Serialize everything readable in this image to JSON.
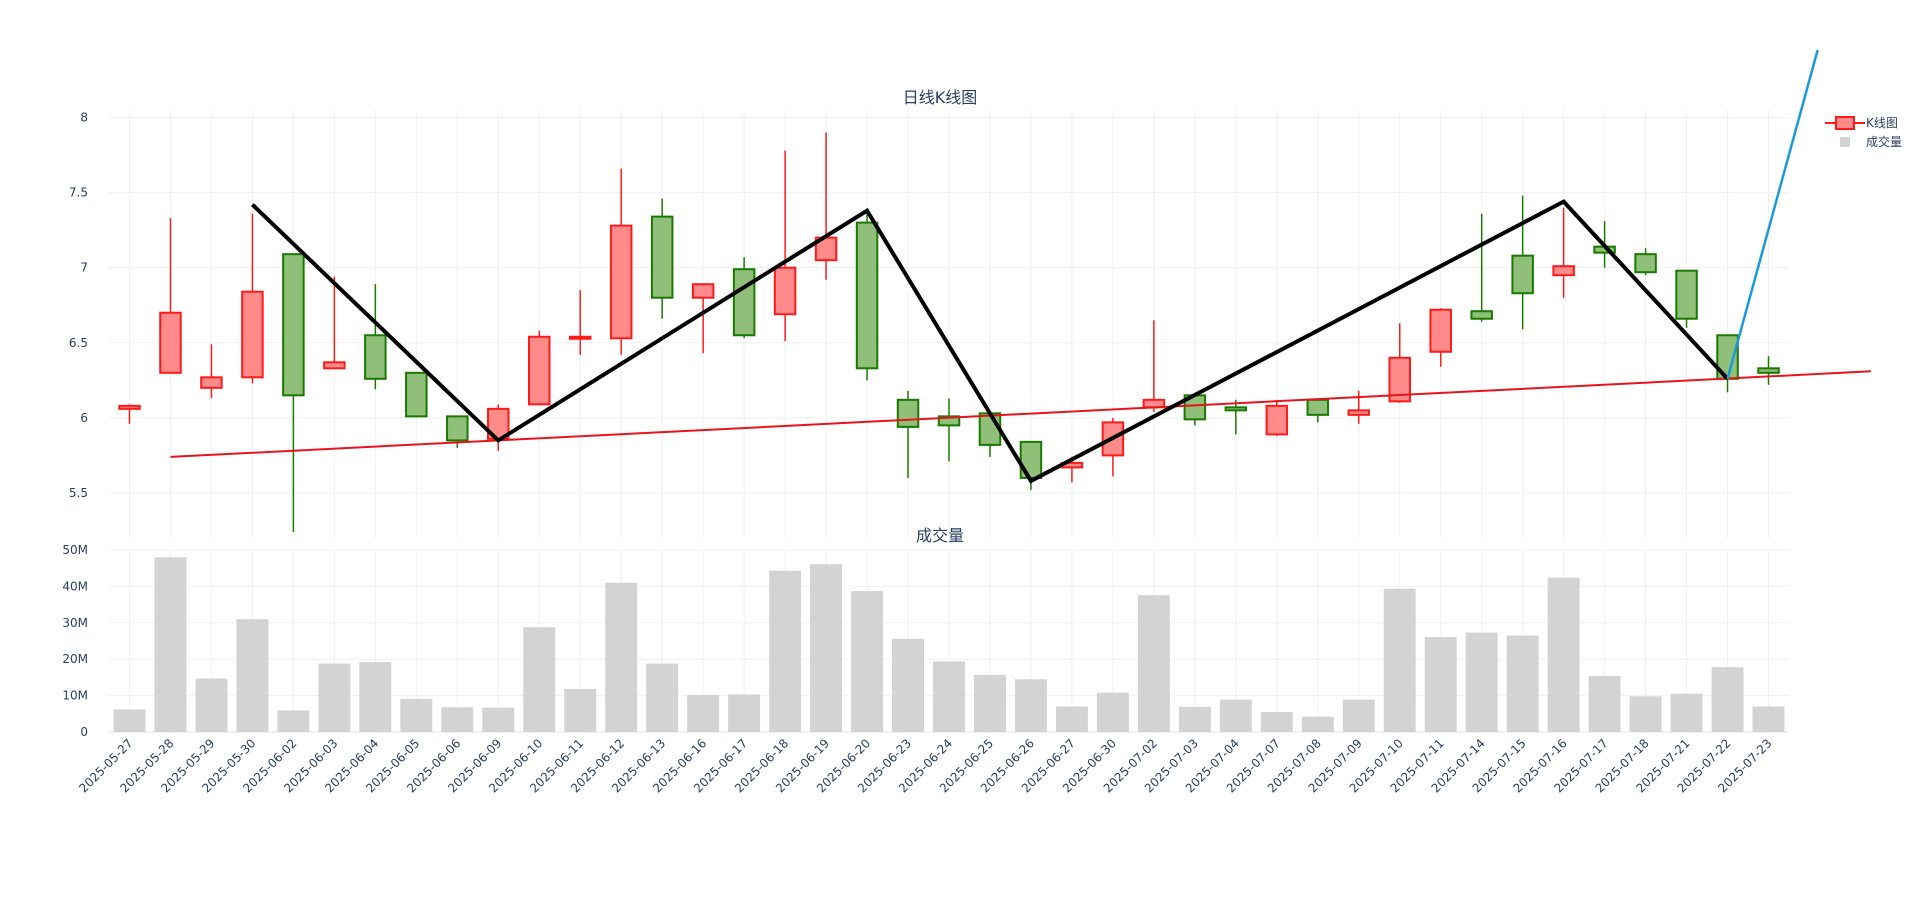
{
  "chart_data": [
    {
      "type": "candlestick",
      "title": "日线K线图",
      "yticks": [
        "5.5",
        "6",
        "6.5",
        "7",
        "7.5",
        "8"
      ],
      "ylim": [
        5.2,
        8.05
      ],
      "grid": true,
      "legend_position": "top-right",
      "colors": {
        "up": "#ff1a1a",
        "up_fill": "#ff8a8a",
        "down": "#1a7a00",
        "down_fill": "#8fbf78",
        "zigzag": "#000000",
        "trend": "#e8141c",
        "projection": "#1a9ad6"
      },
      "categories": [
        "2025-05-27",
        "2025-05-28",
        "2025-05-29",
        "2025-05-30",
        "2025-06-02",
        "2025-06-03",
        "2025-06-04",
        "2025-06-05",
        "2025-06-06",
        "2025-06-09",
        "2025-06-10",
        "2025-06-11",
        "2025-06-12",
        "2025-06-13",
        "2025-06-16",
        "2025-06-17",
        "2025-06-18",
        "2025-06-19",
        "2025-06-20",
        "2025-06-23",
        "2025-06-24",
        "2025-06-25",
        "2025-06-26",
        "2025-06-27",
        "2025-06-30",
        "2025-07-02",
        "2025-07-03",
        "2025-07-04",
        "2025-07-07",
        "2025-07-08",
        "2025-07-09",
        "2025-07-10",
        "2025-07-11",
        "2025-07-14",
        "2025-07-15",
        "2025-07-16",
        "2025-07-17",
        "2025-07-18",
        "2025-07-21",
        "2025-07-22",
        "2025-07-23"
      ],
      "ohlc": [
        [
          6.06,
          6.09,
          5.96,
          6.08
        ],
        [
          6.3,
          7.33,
          6.3,
          6.7
        ],
        [
          6.2,
          6.49,
          6.13,
          6.27
        ],
        [
          6.27,
          7.36,
          6.23,
          6.84
        ],
        [
          7.09,
          7.09,
          5.24,
          6.15
        ],
        [
          6.33,
          6.94,
          6.33,
          6.37
        ],
        [
          6.55,
          6.89,
          6.19,
          6.26
        ],
        [
          6.3,
          6.3,
          6.01,
          6.01
        ],
        [
          6.01,
          6.01,
          5.8,
          5.85
        ],
        [
          5.86,
          6.09,
          5.78,
          6.06
        ],
        [
          6.09,
          6.58,
          6.09,
          6.54
        ],
        [
          6.54,
          6.85,
          6.42,
          6.54
        ],
        [
          6.53,
          7.66,
          6.42,
          7.28
        ],
        [
          7.34,
          7.46,
          6.66,
          6.8
        ],
        [
          6.8,
          6.89,
          6.43,
          6.89
        ],
        [
          6.99,
          7.07,
          6.53,
          6.55
        ],
        [
          6.69,
          7.78,
          6.51,
          7.0
        ],
        [
          7.05,
          7.9,
          6.92,
          7.2
        ],
        [
          7.3,
          7.36,
          6.25,
          6.33
        ],
        [
          6.12,
          6.18,
          5.6,
          5.94
        ],
        [
          6.01,
          6.13,
          5.71,
          5.95
        ],
        [
          6.03,
          6.03,
          5.74,
          5.82
        ],
        [
          5.84,
          5.84,
          5.52,
          5.6
        ],
        [
          5.67,
          5.74,
          5.57,
          5.7
        ],
        [
          5.75,
          6.0,
          5.61,
          5.97
        ],
        [
          6.07,
          6.65,
          6.04,
          6.12
        ],
        [
          6.15,
          6.15,
          5.95,
          5.99
        ],
        [
          6.07,
          6.12,
          5.89,
          6.05
        ],
        [
          5.89,
          6.12,
          5.88,
          6.08
        ],
        [
          6.12,
          6.12,
          5.97,
          6.02
        ],
        [
          6.02,
          6.18,
          5.96,
          6.05
        ],
        [
          6.11,
          6.63,
          6.1,
          6.4
        ],
        [
          6.44,
          6.73,
          6.34,
          6.72
        ],
        [
          6.71,
          7.36,
          6.64,
          6.66
        ],
        [
          7.08,
          7.48,
          6.59,
          6.83
        ],
        [
          6.95,
          7.4,
          6.8,
          7.01
        ],
        [
          7.14,
          7.31,
          7.0,
          7.1
        ],
        [
          7.09,
          7.13,
          6.95,
          6.97
        ],
        [
          6.98,
          6.98,
          6.6,
          6.66
        ],
        [
          6.55,
          6.55,
          6.17,
          6.26
        ],
        [
          6.33,
          6.41,
          6.22,
          6.3
        ]
      ],
      "zigzag": [
        [
          3,
          7.42
        ],
        [
          9,
          5.85
        ],
        [
          18,
          7.38
        ],
        [
          22,
          5.58
        ],
        [
          35,
          7.44
        ],
        [
          39,
          6.26
        ]
      ],
      "trendline": [
        [
          1,
          5.74
        ],
        [
          42.5,
          6.31
        ]
      ],
      "projection": [
        [
          39,
          6.26
        ],
        [
          41.2,
          8.45
        ]
      ],
      "legend": [
        "K线图",
        "成交量"
      ]
    },
    {
      "type": "bar",
      "title": "成交量",
      "yticks": [
        "0",
        "10M",
        "20M",
        "30M",
        "40M",
        "50M"
      ],
      "ylim": [
        0,
        50000000
      ],
      "grid": true,
      "color": "#d3d3d3",
      "values": [
        6200000,
        48000000,
        14700000,
        31000000,
        5900000,
        18800000,
        19200000,
        9100000,
        6800000,
        6700000,
        28800000,
        11800000,
        41000000,
        18800000,
        10200000,
        10300000,
        44300000,
        46100000,
        38700000,
        25600000,
        19400000,
        15700000,
        14500000,
        7000000,
        10800000,
        37600000,
        6900000,
        8900000,
        5500000,
        4200000,
        8900000,
        39400000,
        26100000,
        27300000,
        26500000,
        42400000,
        15400000,
        9800000,
        10500000,
        17800000,
        7000000
      ]
    }
  ]
}
